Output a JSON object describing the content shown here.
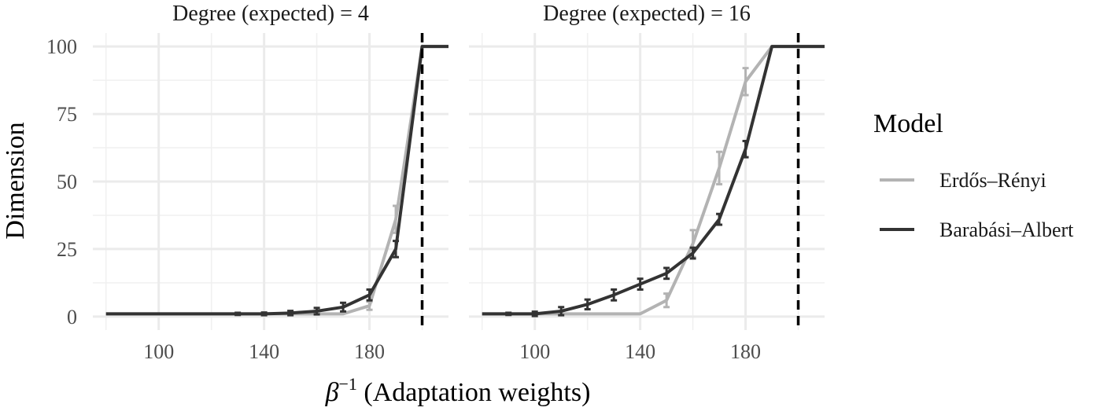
{
  "chart_data": {
    "type": "line",
    "xlabel_symbol": "β",
    "xlabel_sup": "−1",
    "xlabel_text": " (Adaptation weights)",
    "ylabel": "Dimension",
    "xlim": [
      75,
      210
    ],
    "ylim": [
      -5,
      105
    ],
    "x_ticks": [
      100,
      140,
      180
    ],
    "y_ticks": [
      0,
      25,
      50,
      75,
      100
    ],
    "x_minor": [
      80,
      120,
      160,
      200
    ],
    "y_minor": [
      12.5,
      37.5,
      62.5,
      87.5
    ],
    "vline_x": 200,
    "legend": {
      "title": "Model",
      "position": "right"
    },
    "colors": {
      "Erdős–Rényi": "#b3b3b3",
      "Barabási–Albert": "#333333"
    },
    "panels": [
      {
        "title": "Degree (expected) = 4",
        "series": [
          {
            "name": "Erdős–Rényi",
            "x": [
              80,
              90,
              100,
              110,
              120,
              130,
              140,
              150,
              160,
              170,
              180,
              190,
              200,
              212
            ],
            "y": [
              1,
              1,
              1,
              1,
              1,
              1,
              1,
              1,
              1,
              1,
              4,
              36,
              100,
              100
            ],
            "err": [
              0,
              0,
              0,
              0,
              0,
              0,
              0,
              0,
              0,
              0,
              1.5,
              5,
              0,
              0
            ]
          },
          {
            "name": "Barabási–Albert",
            "x": [
              80,
              90,
              100,
              110,
              120,
              130,
              140,
              150,
              160,
              170,
              180,
              190,
              200,
              212
            ],
            "y": [
              1,
              1,
              1,
              1,
              1,
              1,
              1,
              1.3,
              2,
              3.5,
              8,
              25,
              100,
              100
            ],
            "err": [
              0,
              0,
              0,
              0,
              0,
              0.4,
              0.5,
              0.8,
              1.2,
              1.6,
              2,
              3,
              0,
              0
            ]
          }
        ]
      },
      {
        "title": "Degree (expected) = 16",
        "series": [
          {
            "name": "Erdős–Rényi",
            "x": [
              80,
              90,
              100,
              110,
              120,
              130,
              140,
              150,
              160,
              170,
              180,
              190,
              200,
              212
            ],
            "y": [
              1,
              1,
              1,
              1,
              1,
              1,
              1,
              6,
              27,
              55,
              87,
              100,
              100,
              100
            ],
            "err": [
              0,
              0,
              0,
              0,
              0,
              0,
              0,
              2.5,
              5,
              6,
              5,
              0,
              0,
              0
            ]
          },
          {
            "name": "Barabási–Albert",
            "x": [
              80,
              90,
              100,
              110,
              120,
              130,
              140,
              150,
              160,
              170,
              180,
              190,
              200,
              212
            ],
            "y": [
              1,
              1,
              1,
              2,
              4.5,
              8,
              12,
              16,
              23.5,
              36,
              62,
              100,
              100,
              100
            ],
            "err": [
              0,
              0.4,
              0.8,
              1.5,
              1.8,
              2,
              2,
              2,
              2,
              2,
              3,
              0,
              0,
              0
            ]
          }
        ]
      }
    ]
  }
}
